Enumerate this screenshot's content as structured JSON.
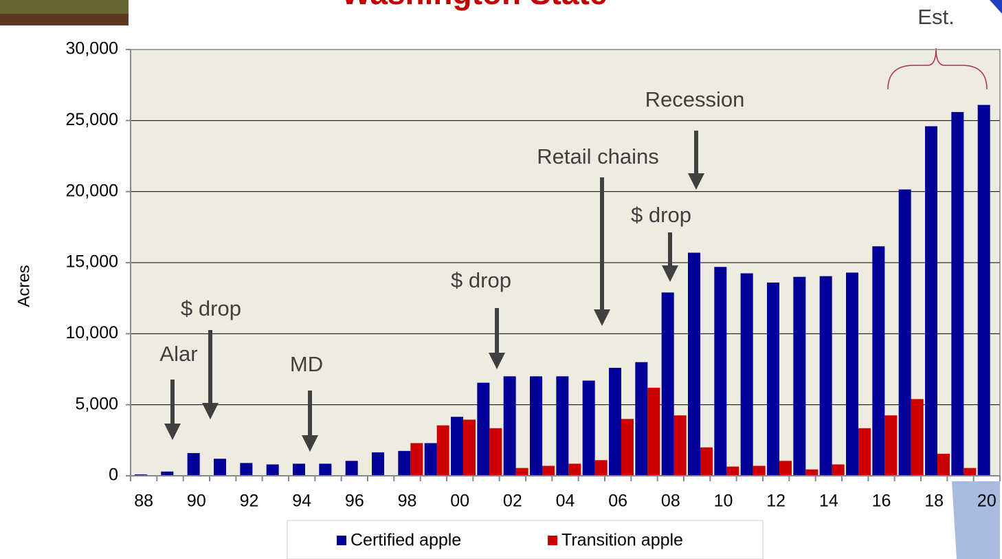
{
  "chart_data": {
    "type": "bar",
    "title": "Washington State",
    "y_label": "Acres",
    "categories": [
      "88",
      null,
      "90",
      null,
      "92",
      null,
      "94",
      null,
      "96",
      null,
      "98",
      null,
      "00",
      null,
      "02",
      null,
      "04",
      null,
      "06",
      null,
      "08",
      null,
      "10",
      null,
      "12",
      null,
      "14",
      null,
      "16",
      null,
      "18",
      null,
      "20"
    ],
    "series": [
      {
        "name": "Certified apple",
        "color": "#000099",
        "values": [
          100,
          300,
          1600,
          1200,
          900,
          800,
          850,
          850,
          1050,
          1650,
          1750,
          2300,
          4150,
          6550,
          7000,
          7000,
          7000,
          6700,
          7600,
          8000,
          12900,
          15700,
          14700,
          14250,
          13600,
          14000,
          14050,
          14300,
          16150,
          20150,
          24600,
          25600,
          26100
        ]
      },
      {
        "name": "Transition apple",
        "color": "#cc0000",
        "values": [
          null,
          null,
          null,
          null,
          null,
          null,
          null,
          null,
          null,
          null,
          2300,
          3550,
          3950,
          3350,
          550,
          700,
          850,
          1100,
          4000,
          6200,
          4250,
          2000,
          650,
          700,
          1050,
          450,
          800,
          3350,
          4250,
          5400,
          1550,
          550,
          null
        ]
      }
    ],
    "ylim": [
      0,
      30000
    ],
    "yticks": [
      0,
      {
        "value": 5000,
        "label": "5,000"
      },
      {
        "value": 10000,
        "label": "10,000"
      },
      {
        "value": 15000,
        "label": "15,000"
      },
      {
        "value": 20000,
        "label": "20,000"
      },
      {
        "value": 25000,
        "label": "25,000"
      },
      {
        "value": 30000,
        "label": "30,000"
      }
    ],
    "grid": true,
    "legend": "bottom",
    "annotations": [
      "Alar",
      "$ drop",
      "MD",
      "$ drop",
      "Retail chains",
      "Recession",
      "$ drop",
      "Est."
    ]
  }
}
